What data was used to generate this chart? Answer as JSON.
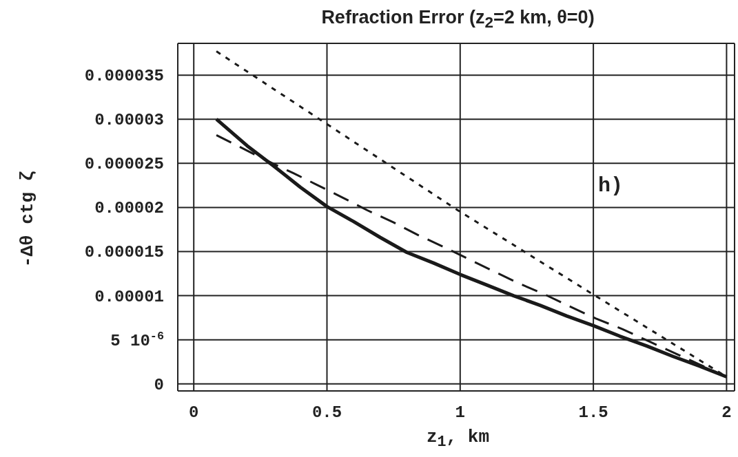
{
  "chart_data": {
    "type": "line",
    "title": "Refraction Error (z$_{2}$=2 km, θ=0)",
    "xlabel": "z$_{1}$, km",
    "ylabel": "-Δθ ctg ζ",
    "annotations": [
      "h)"
    ],
    "xlim": [
      -0.06,
      2.03
    ],
    "xticks": [
      0,
      0.5,
      1,
      1.5,
      2
    ],
    "ylim": [
      -8e-07,
      3.86e-05
    ],
    "yticks": [
      0,
      {
        "value": 5e-06,
        "label": "5 10$^{-6}$"
      },
      {
        "value": 1e-05,
        "label": "0.00001"
      },
      {
        "value": 1.5e-05,
        "label": "0.000015"
      },
      {
        "value": 2e-05,
        "label": "0.00002"
      },
      {
        "value": 2.5e-05,
        "label": "0.000025"
      },
      {
        "value": 3e-05,
        "label": "0.00003"
      },
      {
        "value": 3.5e-05,
        "label": "0.000035"
      }
    ],
    "grid": true,
    "marker": "none",
    "series": [
      {
        "color": "#1a1a1a",
        "line_style": "solid",
        "x": [
          0.085,
          0.2,
          0.3,
          0.4,
          0.5,
          0.6,
          0.7,
          0.8,
          0.9,
          1.0,
          1.1,
          1.2,
          1.3,
          1.4,
          1.5,
          1.6,
          1.7,
          1.8,
          1.9,
          2.0
        ],
        "values": [
          3e-05,
          2.7e-05,
          2.47e-05,
          2.23e-05,
          2.01e-05,
          1.84e-05,
          1.66e-05,
          1.49e-05,
          1.37e-05,
          1.24e-05,
          1.12e-05,
          1e-05,
          8.9e-06,
          7.7e-06,
          6.6e-06,
          5.4e-06,
          4.3e-06,
          3.1e-06,
          2e-06,
          8e-07
        ]
      },
      {
        "color": "#1a1a1a",
        "line_style": "dashed",
        "x": [
          0.085,
          0.275,
          0.373,
          0.46,
          0.56,
          0.65,
          0.75,
          0.84,
          0.94,
          1.035,
          1.13,
          1.22,
          1.32,
          1.41,
          1.51,
          1.61,
          1.71,
          2.0
        ],
        "values": [
          2.82e-05,
          2.53e-05,
          2.39e-05,
          2.26e-05,
          2.11e-05,
          1.97e-05,
          1.83e-05,
          1.69e-05,
          1.55e-05,
          1.41e-05,
          1.27e-05,
          1.14e-05,
          1.01e-05,
          8.8e-06,
          7.4e-06,
          6.2e-06,
          4.8e-06,
          8e-07
        ]
      },
      {
        "color": "#1a1a1a",
        "line_style": "dotted",
        "x": [
          0.085,
          0.99,
          1.48,
          2.0
        ],
        "values": [
          3.77e-05,
          1.97e-05,
          1.05e-05,
          8e-07
        ]
      }
    ]
  }
}
